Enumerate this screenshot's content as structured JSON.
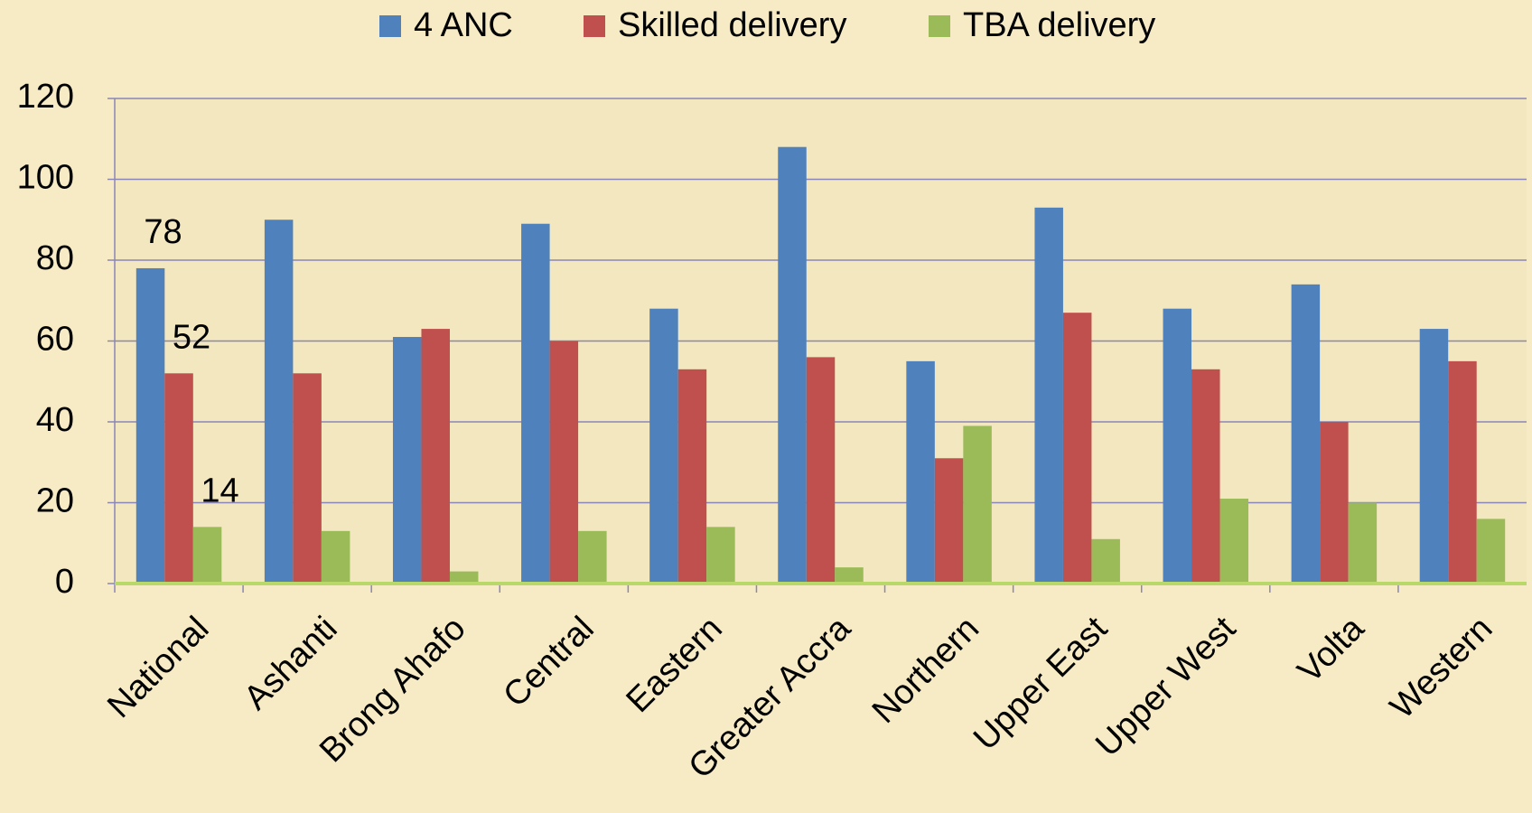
{
  "chart_data": {
    "type": "bar",
    "categories": [
      "National",
      "Ashanti",
      "Brong Ahafo",
      "Central",
      "Eastern",
      "Greater Accra",
      "Northern",
      "Upper East",
      "Upper West",
      "Volta",
      "Western"
    ],
    "series": [
      {
        "name": "4 ANC",
        "color": "#4f81bd",
        "values": [
          78,
          90,
          61,
          89,
          68,
          108,
          55,
          93,
          68,
          74,
          63
        ]
      },
      {
        "name": "Skilled delivery",
        "color": "#c0504d",
        "values": [
          52,
          52,
          63,
          60,
          53,
          56,
          31,
          67,
          53,
          40,
          55
        ]
      },
      {
        "name": "TBA delivery",
        "color": "#9bbb59",
        "values": [
          14,
          13,
          3,
          13,
          14,
          4,
          39,
          11,
          21,
          20,
          16
        ]
      }
    ],
    "ylim": [
      0,
      120
    ],
    "yticks": [
      0,
      20,
      40,
      60,
      80,
      100,
      120
    ],
    "grid": true,
    "legend": "top"
  }
}
